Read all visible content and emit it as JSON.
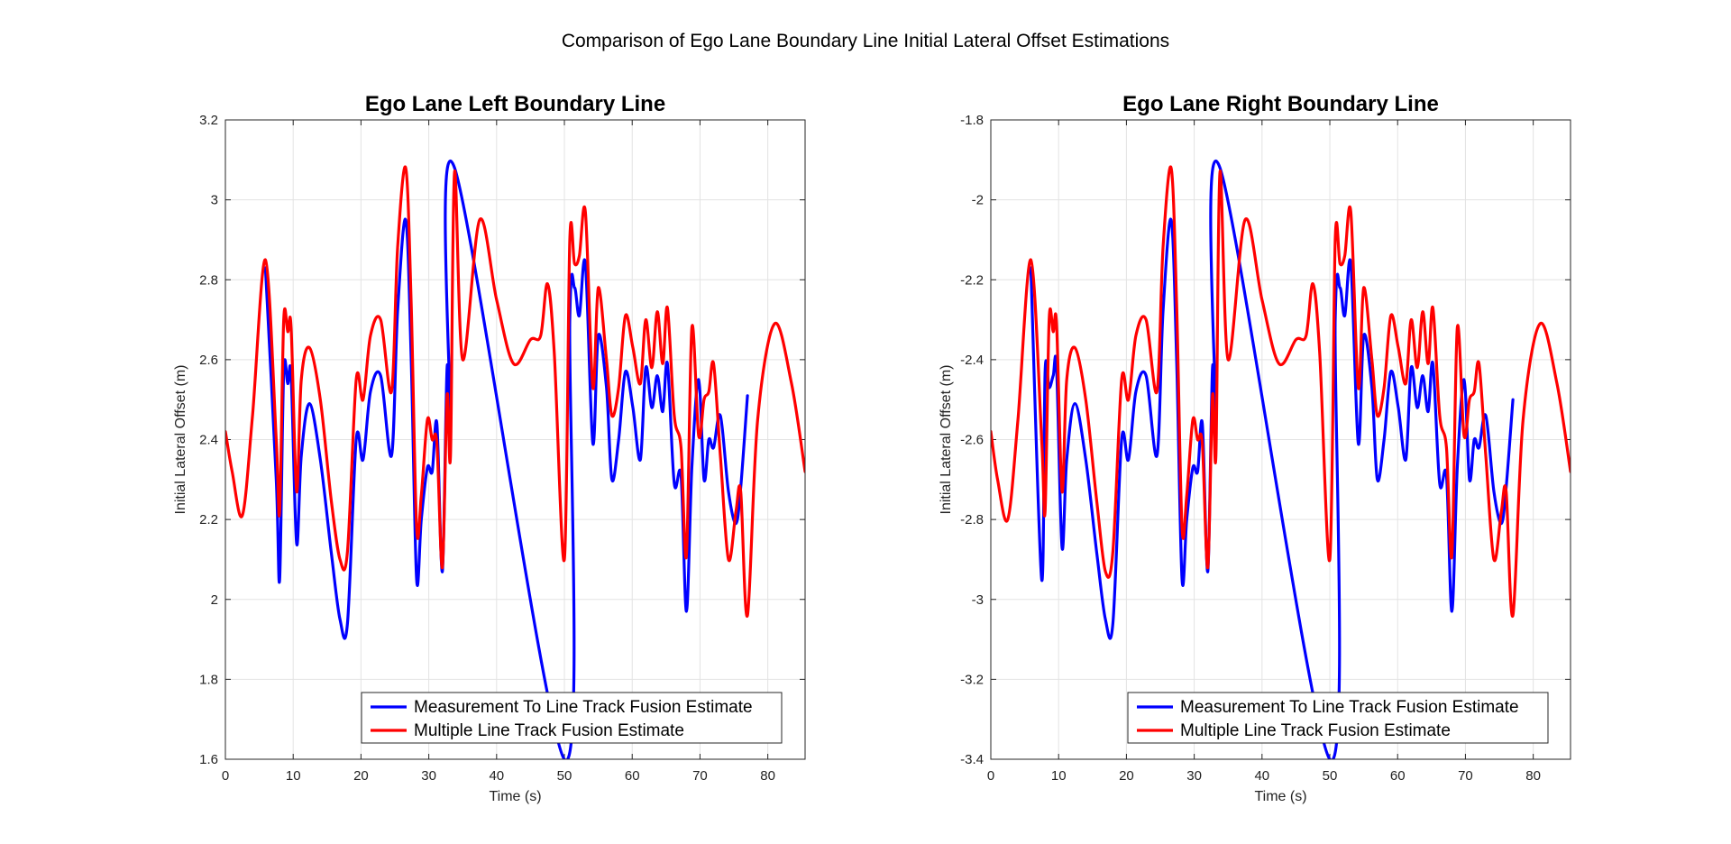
{
  "figure": {
    "title": "Comparison of Ego Lane Boundary Line Initial Lateral Offset Estimations"
  },
  "colors": {
    "measurement": "#0000ff",
    "multiple": "#ff0000",
    "grid": "#e3e3e3",
    "axis": "#262626"
  },
  "legend": {
    "measurement": "Measurement To Line Track Fusion Estimate",
    "multiple": "Multiple Line Track Fusion Estimate",
    "placement": "bottom-right"
  },
  "chart_data": [
    {
      "type": "line",
      "title": "Ego Lane Left Boundary Line",
      "xlabel": "Time (s)",
      "ylabel": "Initial Lateral Offset (m)",
      "xlim": [
        0,
        85.5
      ],
      "ylim": [
        1.6,
        3.2
      ],
      "xticks": [
        "0",
        "10",
        "20",
        "30",
        "40",
        "50",
        "60",
        "70",
        "80"
      ],
      "yticks": [
        "1.6",
        "1.8",
        "2",
        "2.2",
        "2.4",
        "2.6",
        "2.8",
        "3",
        "3.2"
      ],
      "grid": true,
      "series": [
        {
          "name": "Measurement To Line Track Fusion Estimate",
          "x": [
            5.9,
            7.5,
            8.0,
            8.6,
            9.2,
            9.7,
            10.5,
            11.2,
            12.4,
            14.0,
            15.6,
            16.9,
            18.0,
            19.3,
            20.3,
            21.4,
            22.9,
            24.5,
            25.4,
            26.6,
            27.4,
            28.2,
            28.9,
            29.8,
            30.5,
            31.2,
            32.0,
            32.7,
            33.2,
            33.8,
            50.0,
            50.8,
            51.5,
            52.2,
            53.1,
            54.2,
            55.0,
            56.2,
            57.0,
            58.0,
            59.0,
            60.1,
            61.2,
            62.0,
            62.9,
            63.7,
            64.5,
            65.2,
            66.2,
            67.2,
            68.0,
            68.8,
            69.8,
            70.6,
            71.3,
            72.0,
            73.0,
            74.2,
            75.3,
            76.0,
            77.0
          ],
          "values": [
            2.83,
            2.3,
            2.05,
            2.57,
            2.54,
            2.56,
            2.14,
            2.36,
            2.49,
            2.35,
            2.12,
            1.95,
            1.94,
            2.4,
            2.35,
            2.52,
            2.56,
            2.36,
            2.72,
            2.95,
            2.6,
            2.05,
            2.2,
            2.33,
            2.32,
            2.44,
            2.07,
            2.58,
            2.42,
            3.08,
            1.6,
            2.7,
            2.78,
            2.71,
            2.84,
            2.39,
            2.66,
            2.53,
            2.3,
            2.4,
            2.57,
            2.48,
            2.35,
            2.58,
            2.48,
            2.56,
            2.47,
            2.59,
            2.29,
            2.31,
            1.97,
            2.33,
            2.55,
            2.3,
            2.4,
            2.38,
            2.46,
            2.27,
            2.19,
            2.28,
            2.51
          ]
        },
        {
          "name": "Multiple Line Track Fusion Estimate",
          "x": [
            0,
            1.0,
            2.5,
            4.0,
            5.9,
            7.5,
            8.0,
            8.6,
            9.2,
            9.7,
            10.5,
            11.2,
            12.4,
            14.0,
            15.6,
            16.9,
            18.0,
            19.3,
            20.3,
            21.4,
            22.9,
            24.5,
            25.4,
            26.6,
            27.4,
            28.2,
            28.9,
            29.8,
            30.5,
            31.2,
            32.0,
            32.7,
            33.2,
            33.8,
            35.0,
            37.5,
            40.0,
            42.5,
            45.0,
            46.5,
            47.5,
            48.5,
            50.0,
            50.8,
            51.5,
            52.2,
            53.1,
            54.2,
            55.0,
            56.2,
            57.0,
            58.0,
            59.0,
            60.1,
            61.2,
            62.0,
            62.9,
            63.7,
            64.5,
            65.2,
            66.2,
            67.2,
            68.0,
            68.8,
            69.8,
            70.6,
            71.3,
            72.0,
            73.0,
            74.2,
            75.3,
            76.0,
            77.0,
            78.5,
            81.0,
            83.5,
            85.5
          ],
          "values": [
            2.42,
            2.32,
            2.21,
            2.46,
            2.85,
            2.4,
            2.22,
            2.7,
            2.67,
            2.68,
            2.27,
            2.55,
            2.63,
            2.5,
            2.25,
            2.1,
            2.12,
            2.55,
            2.5,
            2.66,
            2.7,
            2.52,
            2.88,
            3.08,
            2.74,
            2.18,
            2.26,
            2.45,
            2.4,
            2.39,
            2.08,
            2.51,
            2.36,
            3.07,
            2.6,
            2.95,
            2.75,
            2.59,
            2.65,
            2.66,
            2.79,
            2.62,
            2.1,
            2.9,
            2.84,
            2.86,
            2.97,
            2.53,
            2.78,
            2.6,
            2.46,
            2.53,
            2.71,
            2.63,
            2.54,
            2.7,
            2.58,
            2.72,
            2.59,
            2.73,
            2.46,
            2.38,
            2.11,
            2.68,
            2.41,
            2.5,
            2.52,
            2.59,
            2.36,
            2.1,
            2.22,
            2.27,
            1.96,
            2.45,
            2.69,
            2.54,
            2.32
          ]
        }
      ]
    },
    {
      "type": "line",
      "title": "Ego Lane Right Boundary Line",
      "xlabel": "Time (s)",
      "ylabel": "Initial Lateral Offset (m)",
      "xlim": [
        0,
        85.5
      ],
      "ylim": [
        -3.4,
        -1.8
      ],
      "xticks": [
        "0",
        "10",
        "20",
        "30",
        "40",
        "50",
        "60",
        "70",
        "80"
      ],
      "yticks": [
        "-3.4",
        "-3.2",
        "-3",
        "-2.8",
        "-2.6",
        "-2.4",
        "-2.2",
        "-2",
        "-1.8"
      ],
      "grid": true,
      "series": [
        {
          "name": "Measurement To Line Track Fusion Estimate",
          "x": [
            5.9,
            7.5,
            8.0,
            8.6,
            9.2,
            9.7,
            10.5,
            11.2,
            12.4,
            14.0,
            15.6,
            16.9,
            18.0,
            19.3,
            20.3,
            21.4,
            22.9,
            24.5,
            25.4,
            26.6,
            27.4,
            28.2,
            28.9,
            29.8,
            30.5,
            31.2,
            32.0,
            32.7,
            33.2,
            33.8,
            50.0,
            50.8,
            51.5,
            52.2,
            53.1,
            54.2,
            55.0,
            56.2,
            57.0,
            58.0,
            59.0,
            60.1,
            61.2,
            62.0,
            62.9,
            63.7,
            64.5,
            65.2,
            66.2,
            67.2,
            68.0,
            68.8,
            69.8,
            70.6,
            71.3,
            72.0,
            73.0,
            74.2,
            75.3,
            76.0,
            77.0
          ],
          "values": [
            -2.17,
            -2.95,
            -2.43,
            -2.47,
            -2.44,
            -2.42,
            -2.87,
            -2.65,
            -2.51,
            -2.65,
            -2.88,
            -3.05,
            -3.06,
            -2.6,
            -2.65,
            -2.48,
            -2.44,
            -2.64,
            -2.28,
            -2.05,
            -2.4,
            -2.95,
            -2.8,
            -2.67,
            -2.68,
            -2.56,
            -2.93,
            -2.42,
            -2.58,
            -1.92,
            -3.4,
            -2.3,
            -2.22,
            -2.29,
            -2.16,
            -2.61,
            -2.34,
            -2.47,
            -2.7,
            -2.6,
            -2.43,
            -2.52,
            -2.65,
            -2.42,
            -2.52,
            -2.44,
            -2.53,
            -2.41,
            -2.71,
            -2.69,
            -3.03,
            -2.67,
            -2.45,
            -2.7,
            -2.6,
            -2.62,
            -2.54,
            -2.73,
            -2.81,
            -2.72,
            -2.5
          ]
        },
        {
          "name": "Multiple Line Track Fusion Estimate",
          "x": [
            0,
            1.0,
            2.5,
            4.0,
            5.9,
            7.5,
            8.0,
            8.6,
            9.2,
            9.7,
            10.5,
            11.2,
            12.4,
            14.0,
            15.6,
            16.9,
            18.0,
            19.3,
            20.3,
            21.4,
            22.9,
            24.5,
            25.4,
            26.6,
            27.4,
            28.2,
            28.9,
            29.8,
            30.5,
            31.2,
            32.0,
            32.7,
            33.2,
            33.8,
            35.0,
            37.5,
            40.0,
            42.5,
            45.0,
            46.5,
            47.5,
            48.5,
            50.0,
            50.8,
            51.5,
            52.2,
            53.1,
            54.2,
            55.0,
            56.2,
            57.0,
            58.0,
            59.0,
            60.1,
            61.2,
            62.0,
            62.9,
            63.7,
            64.5,
            65.2,
            66.2,
            67.2,
            68.0,
            68.8,
            69.8,
            70.6,
            71.3,
            72.0,
            73.0,
            74.2,
            75.3,
            76.0,
            77.0,
            78.5,
            81.0,
            83.5,
            85.5
          ],
          "values": [
            -2.58,
            -2.7,
            -2.8,
            -2.55,
            -2.15,
            -2.6,
            -2.78,
            -2.3,
            -2.33,
            -2.31,
            -2.73,
            -2.45,
            -2.37,
            -2.5,
            -2.75,
            -2.93,
            -2.88,
            -2.45,
            -2.5,
            -2.34,
            -2.3,
            -2.48,
            -2.12,
            -1.92,
            -2.26,
            -2.82,
            -2.74,
            -2.55,
            -2.6,
            -2.61,
            -2.92,
            -2.49,
            -2.64,
            -1.93,
            -2.4,
            -2.05,
            -2.25,
            -2.41,
            -2.35,
            -2.34,
            -2.21,
            -2.38,
            -2.9,
            -2.1,
            -2.16,
            -2.14,
            -2.03,
            -2.47,
            -2.22,
            -2.4,
            -2.54,
            -2.47,
            -2.29,
            -2.37,
            -2.46,
            -2.3,
            -2.42,
            -2.28,
            -2.41,
            -2.27,
            -2.54,
            -2.62,
            -2.89,
            -2.32,
            -2.59,
            -2.5,
            -2.48,
            -2.41,
            -2.64,
            -2.9,
            -2.78,
            -2.73,
            -3.04,
            -2.55,
            -2.31,
            -2.46,
            -2.68
          ]
        }
      ]
    }
  ]
}
